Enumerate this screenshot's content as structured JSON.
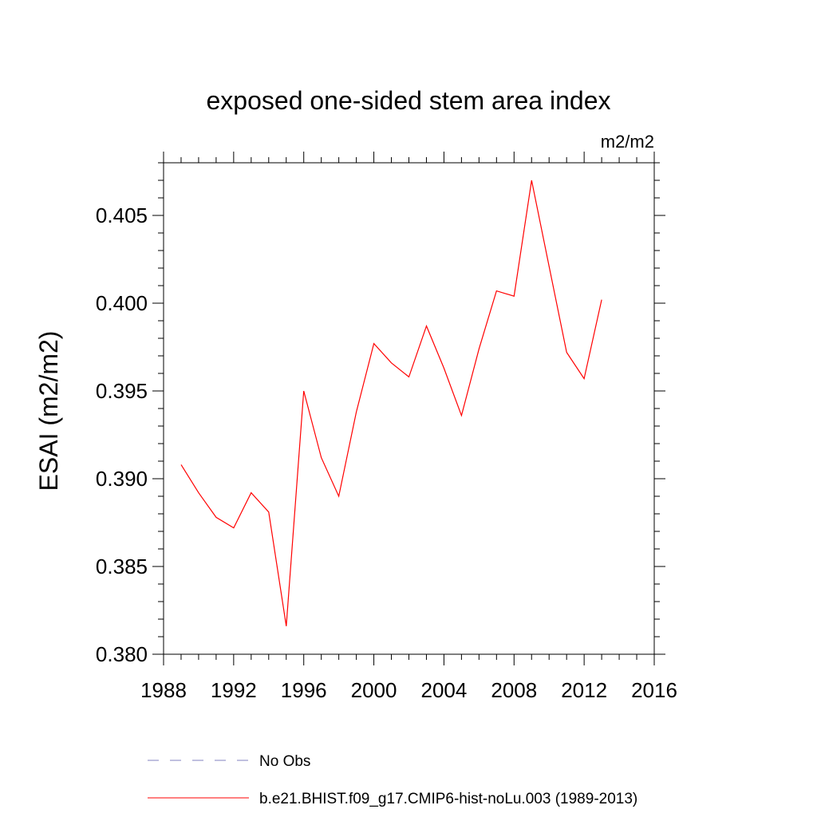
{
  "chart_data": {
    "type": "line",
    "title": "exposed one-sided stem area index",
    "units": "m2/m2",
    "ylabel": "ESAI  (m2/m2)",
    "xlim": [
      1988,
      2016
    ],
    "ylim": [
      0.38,
      0.408
    ],
    "xticks": [
      1988,
      1992,
      1996,
      2000,
      2004,
      2008,
      2012,
      2016
    ],
    "xtick_labels": [
      "1988",
      "1992",
      "1996",
      "2000",
      "2004",
      "2008",
      "2012",
      "2016"
    ],
    "yticks": [
      0.38,
      0.385,
      0.39,
      0.395,
      0.4,
      0.405
    ],
    "ytick_labels": [
      "0.380",
      "0.385",
      "0.390",
      "0.395",
      "0.400",
      "0.405"
    ],
    "grid": false,
    "legend_position": "bottom",
    "series": [
      {
        "name": "b.e21.BHIST.f09_g17.CMIP6-hist-noLu.003 (1989-2013)",
        "color": "#ff0000",
        "style": "solid",
        "x": [
          1989,
          1990,
          1991,
          1992,
          1993,
          1994,
          1995,
          1996,
          1997,
          1998,
          1999,
          2000,
          2001,
          2002,
          2003,
          2004,
          2005,
          2006,
          2007,
          2008,
          2009,
          2010,
          2011,
          2012,
          2013
        ],
        "y": [
          0.3908,
          0.3892,
          0.3878,
          0.3872,
          0.3892,
          0.3881,
          0.3816,
          0.395,
          0.3912,
          0.389,
          0.3938,
          0.3977,
          0.3966,
          0.3958,
          0.3987,
          0.3963,
          0.3936,
          0.3974,
          0.4007,
          0.4004,
          0.407,
          0.4021,
          0.3972,
          0.3957,
          0.4002
        ]
      }
    ],
    "legend": [
      {
        "label": "No Obs",
        "color": "#8080c0",
        "style": "dashed"
      },
      {
        "label": "b.e21.BHIST.f09_g17.CMIP6-hist-noLu.003 (1989-2013)",
        "color": "#ff0000",
        "style": "solid"
      }
    ]
  }
}
